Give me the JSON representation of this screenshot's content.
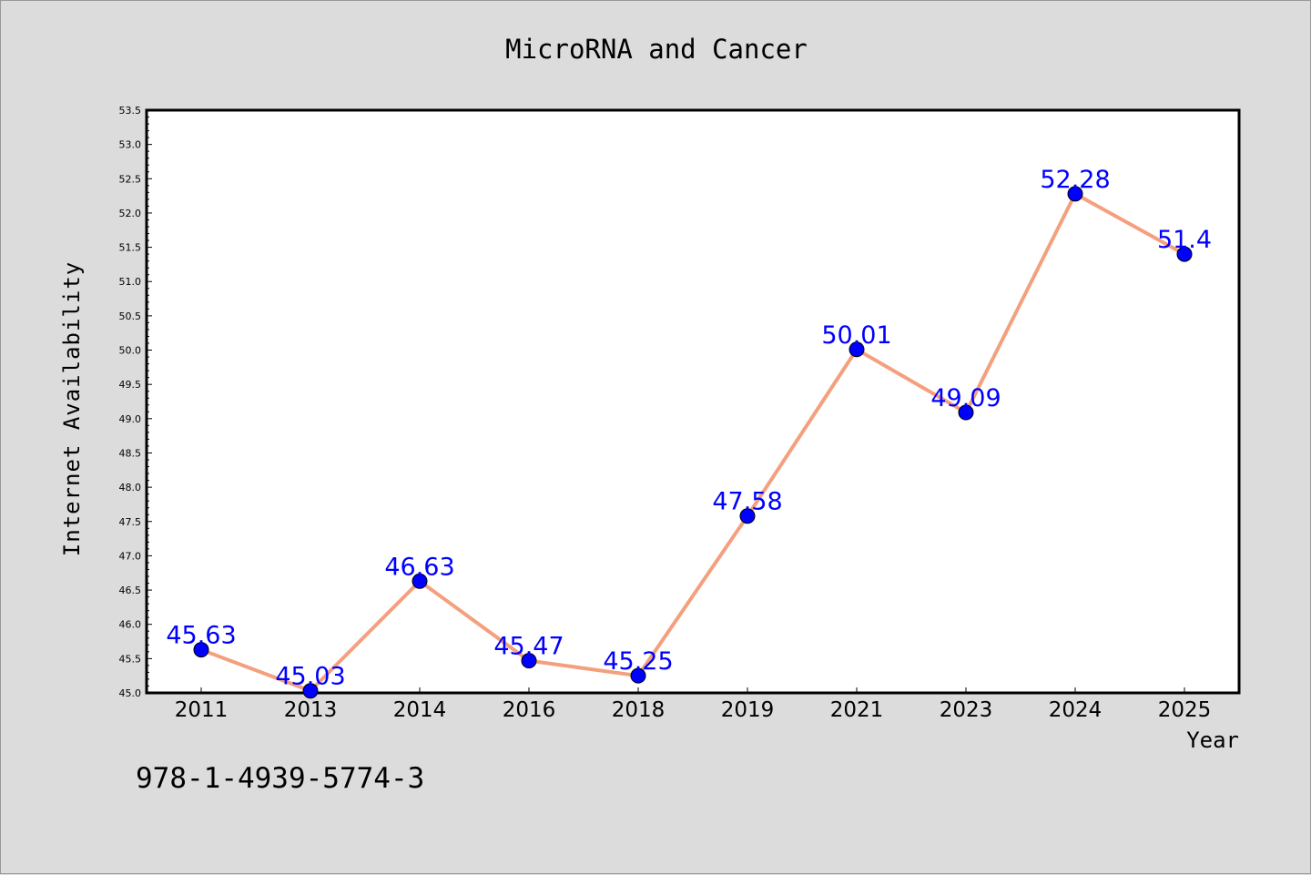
{
  "chart_data": {
    "type": "line",
    "title": "MicroRNA and Cancer",
    "xlabel": "Year",
    "ylabel": "Internet Availability",
    "categories": [
      "2011",
      "2013",
      "2014",
      "2016",
      "2018",
      "2019",
      "2021",
      "2023",
      "2024",
      "2025"
    ],
    "series": [
      {
        "values": [
          45.63,
          45.03,
          46.63,
          45.47,
          45.25,
          47.58,
          50.01,
          49.09,
          52.28,
          51.4
        ]
      }
    ],
    "data_labels": [
      "45.63",
      "45.03",
      "46.63",
      "45.47",
      "45.25",
      "47.58",
      "50.01",
      "49.09",
      "52.28",
      "51.4"
    ],
    "ylim": [
      45.0,
      53.5
    ],
    "y_ticks": [
      45.0,
      45.5,
      46.0,
      46.5,
      47.0,
      47.5,
      48.0,
      48.5,
      49.0,
      49.5,
      50.0,
      50.5,
      51.0,
      51.5,
      52.0,
      52.5,
      53.0,
      53.5
    ],
    "grid": false,
    "line_color": "#f4a07e",
    "marker_color": "#0000ff",
    "label_color": "#0000ff"
  },
  "annotation": "978-1-4939-5774-3"
}
